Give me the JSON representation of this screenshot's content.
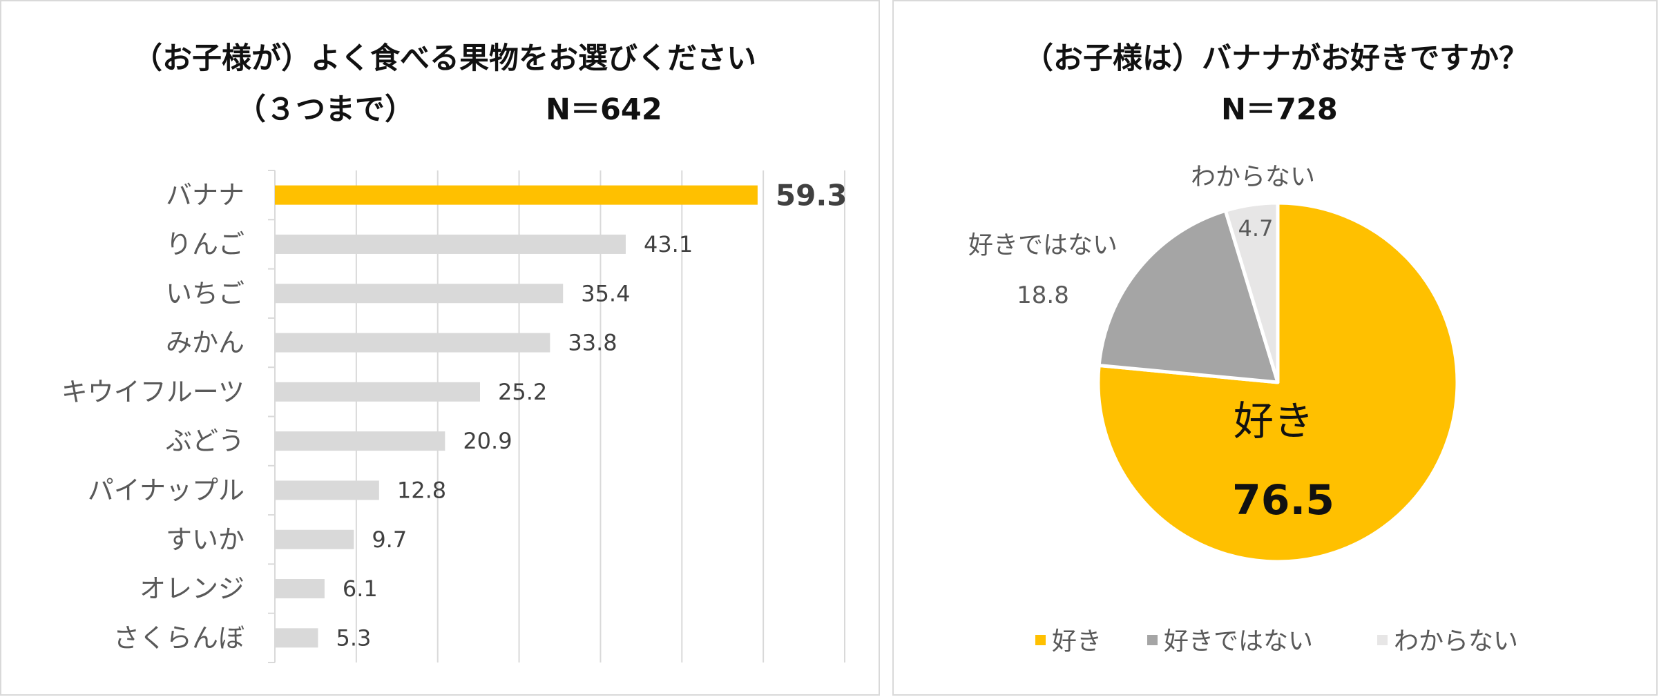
{
  "colors": {
    "accent": "#FFC000",
    "bar_default": "#D9D9D9",
    "pie_dislike": "#A5A5A5",
    "pie_unknown": "#E7E6E6",
    "gridline": "#D9D9D9",
    "text_dark": "#111111",
    "text_label": "#595959"
  },
  "chart_data": [
    {
      "type": "bar",
      "orientation": "horizontal",
      "title": "（お子様が）よく食べる果物をお選びください",
      "subtitle": "（３つまで）",
      "sample_size": "N＝642",
      "categories": [
        "バナナ",
        "りんご",
        "いちご",
        "みかん",
        "キウイフルーツ",
        "ぶどう",
        "パイナップル",
        "すいか",
        "オレンジ",
        "さくらんぼ"
      ],
      "values": [
        59.3,
        43.1,
        35.4,
        33.8,
        25.2,
        20.9,
        12.8,
        9.7,
        6.1,
        5.3
      ],
      "value_labels": [
        "59.3",
        "43.1",
        "35.4",
        "33.8",
        "25.2",
        "20.9",
        "12.8",
        "9.7",
        "6.1",
        "5.3"
      ],
      "highlight_index": 0,
      "xlim": [
        0,
        70
      ],
      "grid": true
    },
    {
      "type": "pie",
      "title": "（お子様は）バナナがお好きですか？",
      "sample_size": "N＝728",
      "slices": [
        {
          "label": "好き",
          "value": 76.5,
          "value_label": "76.5",
          "color": "#FFC000"
        },
        {
          "label": "好きではない",
          "value": 18.8,
          "value_label": "18.8",
          "color": "#A5A5A5"
        },
        {
          "label": "わからない",
          "value": 4.7,
          "value_label": "4.7",
          "color": "#E7E6E6"
        }
      ],
      "legend": [
        "好き",
        "好きではない",
        "わからない"
      ],
      "legend_position": "bottom"
    }
  ]
}
